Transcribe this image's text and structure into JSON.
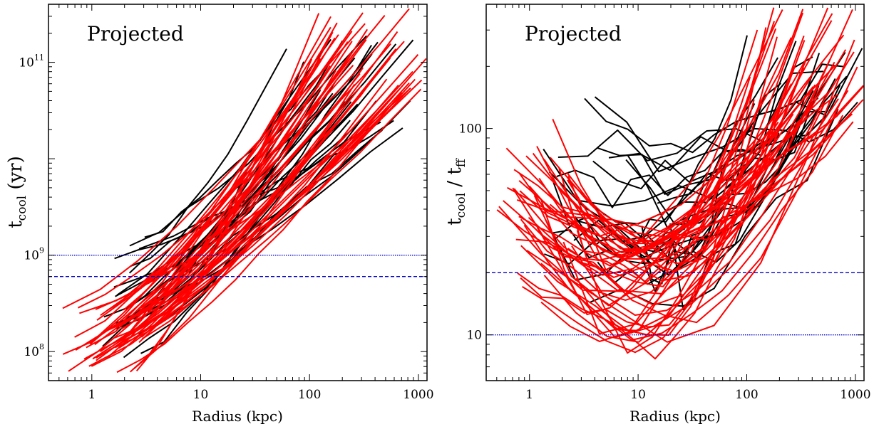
{
  "colors": {
    "observed": "#000000",
    "simulated": "#ff0000",
    "reference": "#0000cc",
    "axes": "#000000",
    "background": "#ffffff"
  },
  "chart_data": [
    {
      "type": "line",
      "annotation": "Projected",
      "xlabel": "Radius (kpc)",
      "ylabel": {
        "main": "t",
        "sub": "cool",
        "rest": " (yr)"
      },
      "xscale": "log",
      "yscale": "log",
      "xlim": [
        0.4,
        1200
      ],
      "ylim": [
        50000000,
        400000000000
      ],
      "xticks": [
        {
          "label": "1",
          "value": 1
        },
        {
          "label": "10",
          "value": 10
        },
        {
          "label": "100",
          "value": 100
        },
        {
          "label": "1000",
          "value": 1000
        }
      ],
      "yticks": [
        {
          "base": "10",
          "exp": "8",
          "value": 100000000
        },
        {
          "base": "10",
          "exp": "9",
          "value": 1000000000
        },
        {
          "base": "10",
          "exp": "11",
          "value": 100000000000
        }
      ],
      "reference_lines": [
        {
          "y": 1000000000,
          "style": "dotted"
        },
        {
          "y": 600000000,
          "style": "dashed"
        }
      ],
      "series_groups": [
        {
          "color": "black",
          "count": 25,
          "x_start": [
            1.2,
            5.0
          ],
          "x_end": [
            60,
            1100
          ],
          "y_start": [
            70000000,
            1500000000
          ],
          "y_end": [
            20000000000,
            200000000000
          ]
        },
        {
          "color": "red",
          "count": 48,
          "x_start": [
            0.5,
            3.0
          ],
          "x_end": [
            100,
            1300
          ],
          "y_start": [
            60000000,
            300000000
          ],
          "y_end": [
            50000000000,
            400000000000
          ]
        }
      ]
    },
    {
      "type": "line",
      "annotation": "Projected",
      "xlabel": "Radius (kpc)",
      "ylabel": {
        "main": "t",
        "sub": "cool",
        "rest": " / t",
        "sub2": "ff"
      },
      "xscale": "log",
      "yscale": "log",
      "xlim": [
        0.4,
        1200
      ],
      "ylim": [
        6,
        400
      ],
      "xticks": [
        {
          "label": "1",
          "value": 1
        },
        {
          "label": "10",
          "value": 10
        },
        {
          "label": "100",
          "value": 100
        },
        {
          "label": "1000",
          "value": 1000
        }
      ],
      "yticks": [
        {
          "label": "10",
          "value": 10
        },
        {
          "label": "100",
          "value": 100
        }
      ],
      "reference_lines": [
        {
          "y": 10,
          "style": "dotted"
        },
        {
          "y": 20,
          "style": "dashed"
        }
      ],
      "series_groups": [
        {
          "color": "black",
          "count": 26,
          "x_start": [
            1.2,
            20
          ],
          "x_end": [
            100,
            1200
          ],
          "y_min": [
            15,
            80
          ],
          "y_max": [
            100,
            250
          ]
        },
        {
          "color": "red",
          "count": 48,
          "x_start": [
            0.5,
            3.0
          ],
          "x_end": [
            100,
            1300
          ],
          "y_min": [
            8,
            30
          ],
          "y_max": [
            100,
            400
          ]
        }
      ]
    }
  ]
}
